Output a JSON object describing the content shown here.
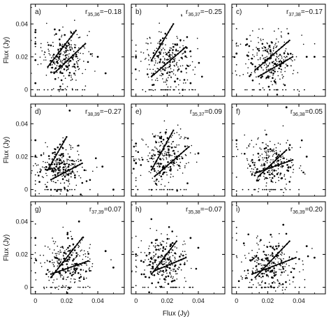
{
  "figure": {
    "xlabel": "Flux (Jy)",
    "ylabel": "Flux (Jy)"
  },
  "chart_data": [
    {
      "type": "scatter",
      "panel": "a)",
      "r_sub": "35,36",
      "r_value": "=−0.18",
      "xlim": [
        -0.003,
        0.057
      ],
      "ylim": [
        -0.004,
        0.052
      ],
      "x_ticks": [
        "0",
        "0.02",
        "0.04"
      ],
      "y_ticks": [
        "0",
        "0.02",
        "0.04"
      ],
      "center": [
        0.018,
        0.02
      ],
      "spread": [
        0.007,
        0.008
      ],
      "fit_lines": [
        [
          [
            0.008,
            0.014
          ],
          [
            0.026,
            0.036
          ]
        ],
        [
          [
            0.012,
            0.01
          ],
          [
            0.032,
            0.028
          ]
        ]
      ],
      "points": [
        [
          0.0,
          0.018
        ],
        [
          0.0,
          0.028
        ],
        [
          0.0,
          0.004
        ],
        [
          0.0,
          0.035
        ],
        [
          0.04,
          0.02
        ],
        [
          0.045,
          0.01
        ]
      ]
    },
    {
      "type": "scatter",
      "panel": "b)",
      "r_sub": "36,37",
      "r_value": "=−0.25",
      "xlim": [
        -0.003,
        0.057
      ],
      "ylim": [
        -0.004,
        0.052
      ],
      "x_ticks": [
        "0",
        "0.02",
        "0.04"
      ],
      "y_ticks": [
        "0",
        "0.02",
        "0.04"
      ],
      "center": [
        0.02,
        0.018
      ],
      "spread": [
        0.008,
        0.009
      ],
      "fit_lines": [
        [
          [
            0.01,
            0.018
          ],
          [
            0.024,
            0.04
          ]
        ],
        [
          [
            0.01,
            0.008
          ],
          [
            0.032,
            0.026
          ]
        ]
      ],
      "points": [
        [
          0.025,
          0.005
        ],
        [
          0.03,
          0.0
        ],
        [
          0.035,
          0.004
        ],
        [
          0.0,
          0.02
        ]
      ]
    },
    {
      "type": "scatter",
      "panel": "c)",
      "r_sub": "37,38",
      "r_value": "=−0.17",
      "xlim": [
        -0.003,
        0.057
      ],
      "ylim": [
        -0.004,
        0.052
      ],
      "x_ticks": [
        "0",
        "0.02",
        "0.04"
      ],
      "y_ticks": [
        "0",
        "0.02",
        "0.04"
      ],
      "center": [
        0.022,
        0.018
      ],
      "spread": [
        0.008,
        0.008
      ],
      "fit_lines": [
        [
          [
            0.012,
            0.012
          ],
          [
            0.034,
            0.03
          ]
        ],
        [
          [
            0.014,
            0.008
          ],
          [
            0.036,
            0.02
          ]
        ]
      ],
      "points": [
        [
          0.0,
          0.022
        ],
        [
          0.045,
          0.02
        ],
        [
          0.05,
          0.02
        ]
      ]
    },
    {
      "type": "scatter",
      "panel": "d)",
      "r_sub": "38,39",
      "r_value": "=−0.27",
      "xlim": [
        -0.003,
        0.057
      ],
      "ylim": [
        -0.004,
        0.052
      ],
      "x_ticks": [
        "0",
        "0.02",
        "0.04"
      ],
      "y_ticks": [
        "0",
        "0.02",
        "0.04"
      ],
      "center": [
        0.016,
        0.014
      ],
      "spread": [
        0.007,
        0.007
      ],
      "fit_lines": [
        [
          [
            0.008,
            0.012
          ],
          [
            0.02,
            0.032
          ]
        ],
        [
          [
            0.01,
            0.006
          ],
          [
            0.03,
            0.016
          ]
        ]
      ],
      "points": [
        [
          0.0,
          0.03
        ],
        [
          0.0,
          0.02
        ],
        [
          0.043,
          0.014
        ],
        [
          0.05,
          0.0
        ],
        [
          0.022,
          0.048
        ]
      ]
    },
    {
      "type": "scatter",
      "panel": "e)",
      "r_sub": "35,37",
      "r_value": "=0.09",
      "xlim": [
        -0.003,
        0.057
      ],
      "ylim": [
        -0.004,
        0.052
      ],
      "x_ticks": [
        "0",
        "0.02",
        "0.04"
      ],
      "y_ticks": [
        "0",
        "0.02",
        "0.04"
      ],
      "center": [
        0.018,
        0.02
      ],
      "spread": [
        0.008,
        0.008
      ],
      "fit_lines": [
        [
          [
            0.01,
            0.012
          ],
          [
            0.024,
            0.036
          ]
        ],
        [
          [
            0.012,
            0.008
          ],
          [
            0.034,
            0.026
          ]
        ]
      ],
      "points": [
        [
          0.0,
          0.016
        ],
        [
          0.0,
          0.028
        ],
        [
          0.04,
          0.022
        ]
      ]
    },
    {
      "type": "scatter",
      "panel": "f)",
      "r_sub": "36,38",
      "r_value": "=0.05",
      "xlim": [
        -0.003,
        0.057
      ],
      "ylim": [
        -0.004,
        0.052
      ],
      "x_ticks": [
        "0",
        "0.02",
        "0.04"
      ],
      "y_ticks": [
        "0",
        "0.02",
        "0.04"
      ],
      "center": [
        0.022,
        0.016
      ],
      "spread": [
        0.008,
        0.008
      ],
      "fit_lines": [
        [
          [
            0.014,
            0.008
          ],
          [
            0.032,
            0.024
          ]
        ],
        [
          [
            0.012,
            0.01
          ],
          [
            0.036,
            0.018
          ]
        ]
      ],
      "points": [
        [
          0.0,
          0.03
        ],
        [
          0.045,
          0.02
        ],
        [
          0.032,
          0.05
        ]
      ]
    },
    {
      "type": "scatter",
      "panel": "g)",
      "r_sub": "37,39",
      "r_value": "=0.07",
      "xlim": [
        -0.003,
        0.057
      ],
      "ylim": [
        -0.004,
        0.052
      ],
      "x_ticks": [
        "0",
        "0.02",
        "0.04"
      ],
      "y_ticks": [
        "0",
        "0.02",
        "0.04"
      ],
      "center": [
        0.02,
        0.014
      ],
      "spread": [
        0.008,
        0.008
      ],
      "fit_lines": [
        [
          [
            0.01,
            0.006
          ],
          [
            0.03,
            0.03
          ]
        ],
        [
          [
            0.01,
            0.008
          ],
          [
            0.034,
            0.016
          ]
        ]
      ],
      "points": [
        [
          0.0,
          0.03
        ],
        [
          0.045,
          0.022
        ],
        [
          0.05,
          0.012
        ],
        [
          0.028,
          0.04
        ]
      ]
    },
    {
      "type": "scatter",
      "panel": "h)",
      "r_sub": "35,38",
      "r_value": "=−0.07",
      "xlim": [
        -0.003,
        0.057
      ],
      "ylim": [
        -0.004,
        0.052
      ],
      "x_ticks": [
        "0",
        "0.02",
        "0.04"
      ],
      "y_ticks": [
        "0",
        "0.02",
        "0.04"
      ],
      "center": [
        0.018,
        0.016
      ],
      "spread": [
        0.008,
        0.008
      ],
      "fit_lines": [
        [
          [
            0.01,
            0.008
          ],
          [
            0.026,
            0.028
          ]
        ],
        [
          [
            0.012,
            0.01
          ],
          [
            0.032,
            0.018
          ]
        ]
      ],
      "points": [
        [
          0.0,
          0.02
        ],
        [
          0.04,
          0.024
        ],
        [
          0.035,
          0.03
        ]
      ]
    },
    {
      "type": "scatter",
      "panel": "i)",
      "r_sub": "36,39",
      "r_value": "=0.20",
      "xlim": [
        -0.003,
        0.057
      ],
      "ylim": [
        -0.004,
        0.052
      ],
      "x_ticks": [
        "0",
        "0.02",
        "0.04"
      ],
      "y_ticks": [
        "0",
        "0.02",
        "0.04"
      ],
      "center": [
        0.022,
        0.014
      ],
      "spread": [
        0.008,
        0.008
      ],
      "fit_lines": [
        [
          [
            0.012,
            0.006
          ],
          [
            0.034,
            0.028
          ]
        ],
        [
          [
            0.01,
            0.008
          ],
          [
            0.038,
            0.018
          ]
        ]
      ],
      "points": [
        [
          0.045,
          0.025
        ],
        [
          0.05,
          0.018
        ],
        [
          0.03,
          0.038
        ]
      ]
    }
  ]
}
